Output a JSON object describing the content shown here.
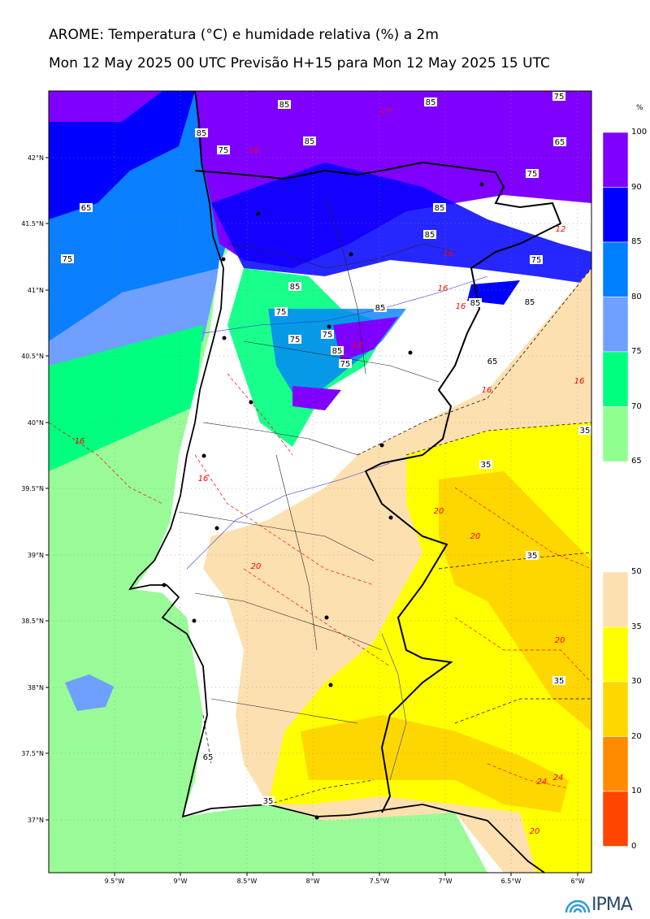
{
  "title": "AROME: Temperatura (°C) e humidade relativa (%) a 2m",
  "subtitle": "Mon 12 May 2025 00 UTC Previsão H+15 para Mon 12 May 2025 15 UTC",
  "map": {
    "lat_labels": [
      "42°N",
      "41.5°N",
      "41°N",
      "40.5°N",
      "40°N",
      "39.5°N",
      "39°N",
      "38.5°N",
      "38°N",
      "37.5°N",
      "37°N"
    ],
    "lon_labels": [
      "9.5°W",
      "9°W",
      "8.5°W",
      "8°W",
      "7.5°W",
      "7°W",
      "6.5°W",
      "6°W"
    ],
    "humidity_contour_labels": [
      "85",
      "85",
      "85",
      "85",
      "75",
      "65",
      "75",
      "75",
      "85",
      "65",
      "75",
      "85",
      "75",
      "85",
      "75",
      "75",
      "85",
      "75",
      "65",
      "75",
      "85",
      "85",
      "35",
      "35",
      "35",
      "35",
      "65",
      "35",
      "85"
    ],
    "temperature_contour_labels": [
      "17",
      "16",
      "16",
      "16",
      "16",
      "16",
      "16",
      "16",
      "16",
      "20",
      "20",
      "20",
      "20",
      "24",
      "24",
      "20",
      "12",
      "12"
    ]
  },
  "colorbar_humidity": {
    "unit": "%",
    "ticks": [
      "100",
      "90",
      "85",
      "80",
      "75",
      "70",
      "65"
    ],
    "colors": [
      "#8000ff",
      "#0000ff",
      "#0080ff",
      "#6fa0ff",
      "#00ff7f",
      "#90ff90"
    ]
  },
  "colorbar_temperature": {
    "ticks": [
      "50",
      "35",
      "30",
      "20",
      "10",
      "0"
    ],
    "colors": [
      "#fde0b0",
      "#ffff00",
      "#ffd700",
      "#ff8c00",
      "#ff4500"
    ]
  },
  "colors": {
    "land": "#ffffff",
    "sea_humid": "#0a78ff",
    "contour_humidity": "#000000",
    "contour_temp": "#ff0000"
  },
  "logo_text": "IPMA"
}
